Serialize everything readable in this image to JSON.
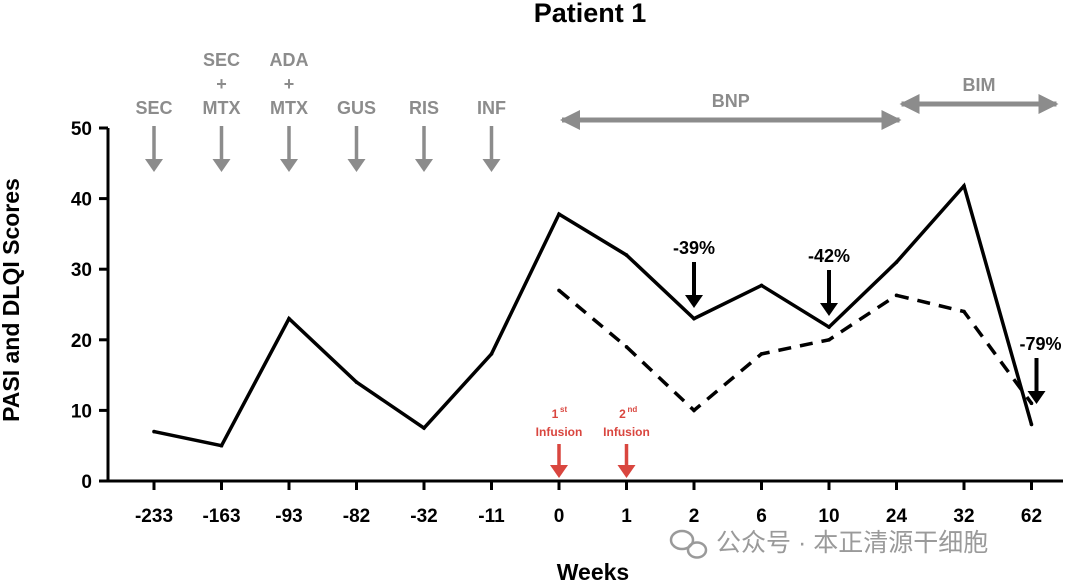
{
  "chart_data": {
    "type": "line",
    "title": "Patient 1",
    "xlabel": "Weeks",
    "ylabel": "PASI and DLQI Scores",
    "ylim": [
      0,
      50
    ],
    "yticks": [
      "0",
      "10",
      "20",
      "30",
      "40",
      "50"
    ],
    "categories": [
      "-233",
      "-163",
      "-93",
      "-82",
      "-32",
      "-11",
      "0",
      "1",
      "2",
      "6",
      "10",
      "24",
      "32",
      "62"
    ],
    "series": [
      {
        "style": "solid",
        "values": [
          7,
          5,
          23,
          14,
          7.5,
          18,
          37.8,
          32,
          23,
          27.7,
          21.8,
          31,
          41.8,
          8
        ]
      },
      {
        "style": "dashed",
        "values": [
          null,
          null,
          null,
          null,
          null,
          null,
          27,
          19,
          10,
          18,
          20,
          26.3,
          24,
          11
        ]
      }
    ],
    "treatments": [
      {
        "lines": [
          "SEC"
        ],
        "category": "-233"
      },
      {
        "lines": [
          "SEC",
          "+",
          "MTX"
        ],
        "category": "-163"
      },
      {
        "lines": [
          "ADA",
          "+",
          "MTX"
        ],
        "category": "-93"
      },
      {
        "lines": [
          "GUS"
        ],
        "category": "-82"
      },
      {
        "lines": [
          "RIS"
        ],
        "category": "-32"
      },
      {
        "lines": [
          "INF"
        ],
        "category": "-11"
      }
    ],
    "ranges": [
      {
        "label": "BNP",
        "from": "0",
        "to": "24"
      },
      {
        "label": "BIM",
        "from": "24",
        "to": "62"
      }
    ],
    "annotations": [
      {
        "text": "-39%",
        "category": "2"
      },
      {
        "text": "-42%",
        "category": "10"
      },
      {
        "text": "-79%",
        "category": "62"
      }
    ],
    "infusions": [
      {
        "ordinal": "1",
        "suffix": "st",
        "label": "Infusion",
        "category": "0"
      },
      {
        "ordinal": "2",
        "suffix": "nd",
        "label": "Infusion",
        "category": "1"
      }
    ],
    "colors": {
      "line": "#000000",
      "treatment": "#8c8c8c",
      "infusion": "#d9463f"
    }
  },
  "watermark": "公众号 · 本正清源干细胞"
}
